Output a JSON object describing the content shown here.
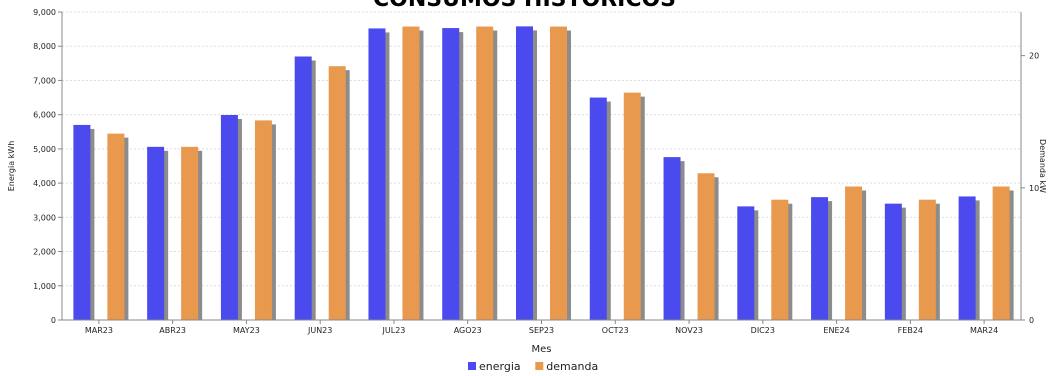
{
  "chart_data": {
    "type": "bar",
    "title": "CONSUMOS HISTORICOS",
    "xlabel": "Mes",
    "ylabel": "Energia kWh",
    "y2label": "Demanda kW",
    "categories": [
      "MAR23",
      "ABR23",
      "MAY23",
      "JUN23",
      "JUL23",
      "AGO23",
      "SEP23",
      "OCT23",
      "NOV23",
      "DIC23",
      "ENE24",
      "FEB24",
      "MAR24"
    ],
    "ylim": [
      0,
      9000
    ],
    "yticks": [
      "0",
      "1,000",
      "2,000",
      "3,000",
      "4,000",
      "5,000",
      "6,000",
      "7,000",
      "8,000",
      "9,000"
    ],
    "y2lim": [
      0,
      23.3
    ],
    "y2ticks": [
      "0",
      "10",
      "20"
    ],
    "grid": true,
    "legend_position": "bottom-center",
    "series": [
      {
        "name": "energia",
        "axis": "left",
        "color": "#4a4aee",
        "values": [
          5700,
          5060,
          5990,
          7700,
          8520,
          8530,
          8580,
          6500,
          4760,
          3320,
          3590,
          3400,
          3610
        ]
      },
      {
        "name": "demanda",
        "axis": "right",
        "color": "#e8994e",
        "values": [
          14.1,
          13.1,
          15.1,
          19.2,
          22.2,
          22.2,
          22.2,
          17.2,
          11.1,
          9.1,
          10.1,
          9.1,
          10.1
        ]
      }
    ]
  }
}
